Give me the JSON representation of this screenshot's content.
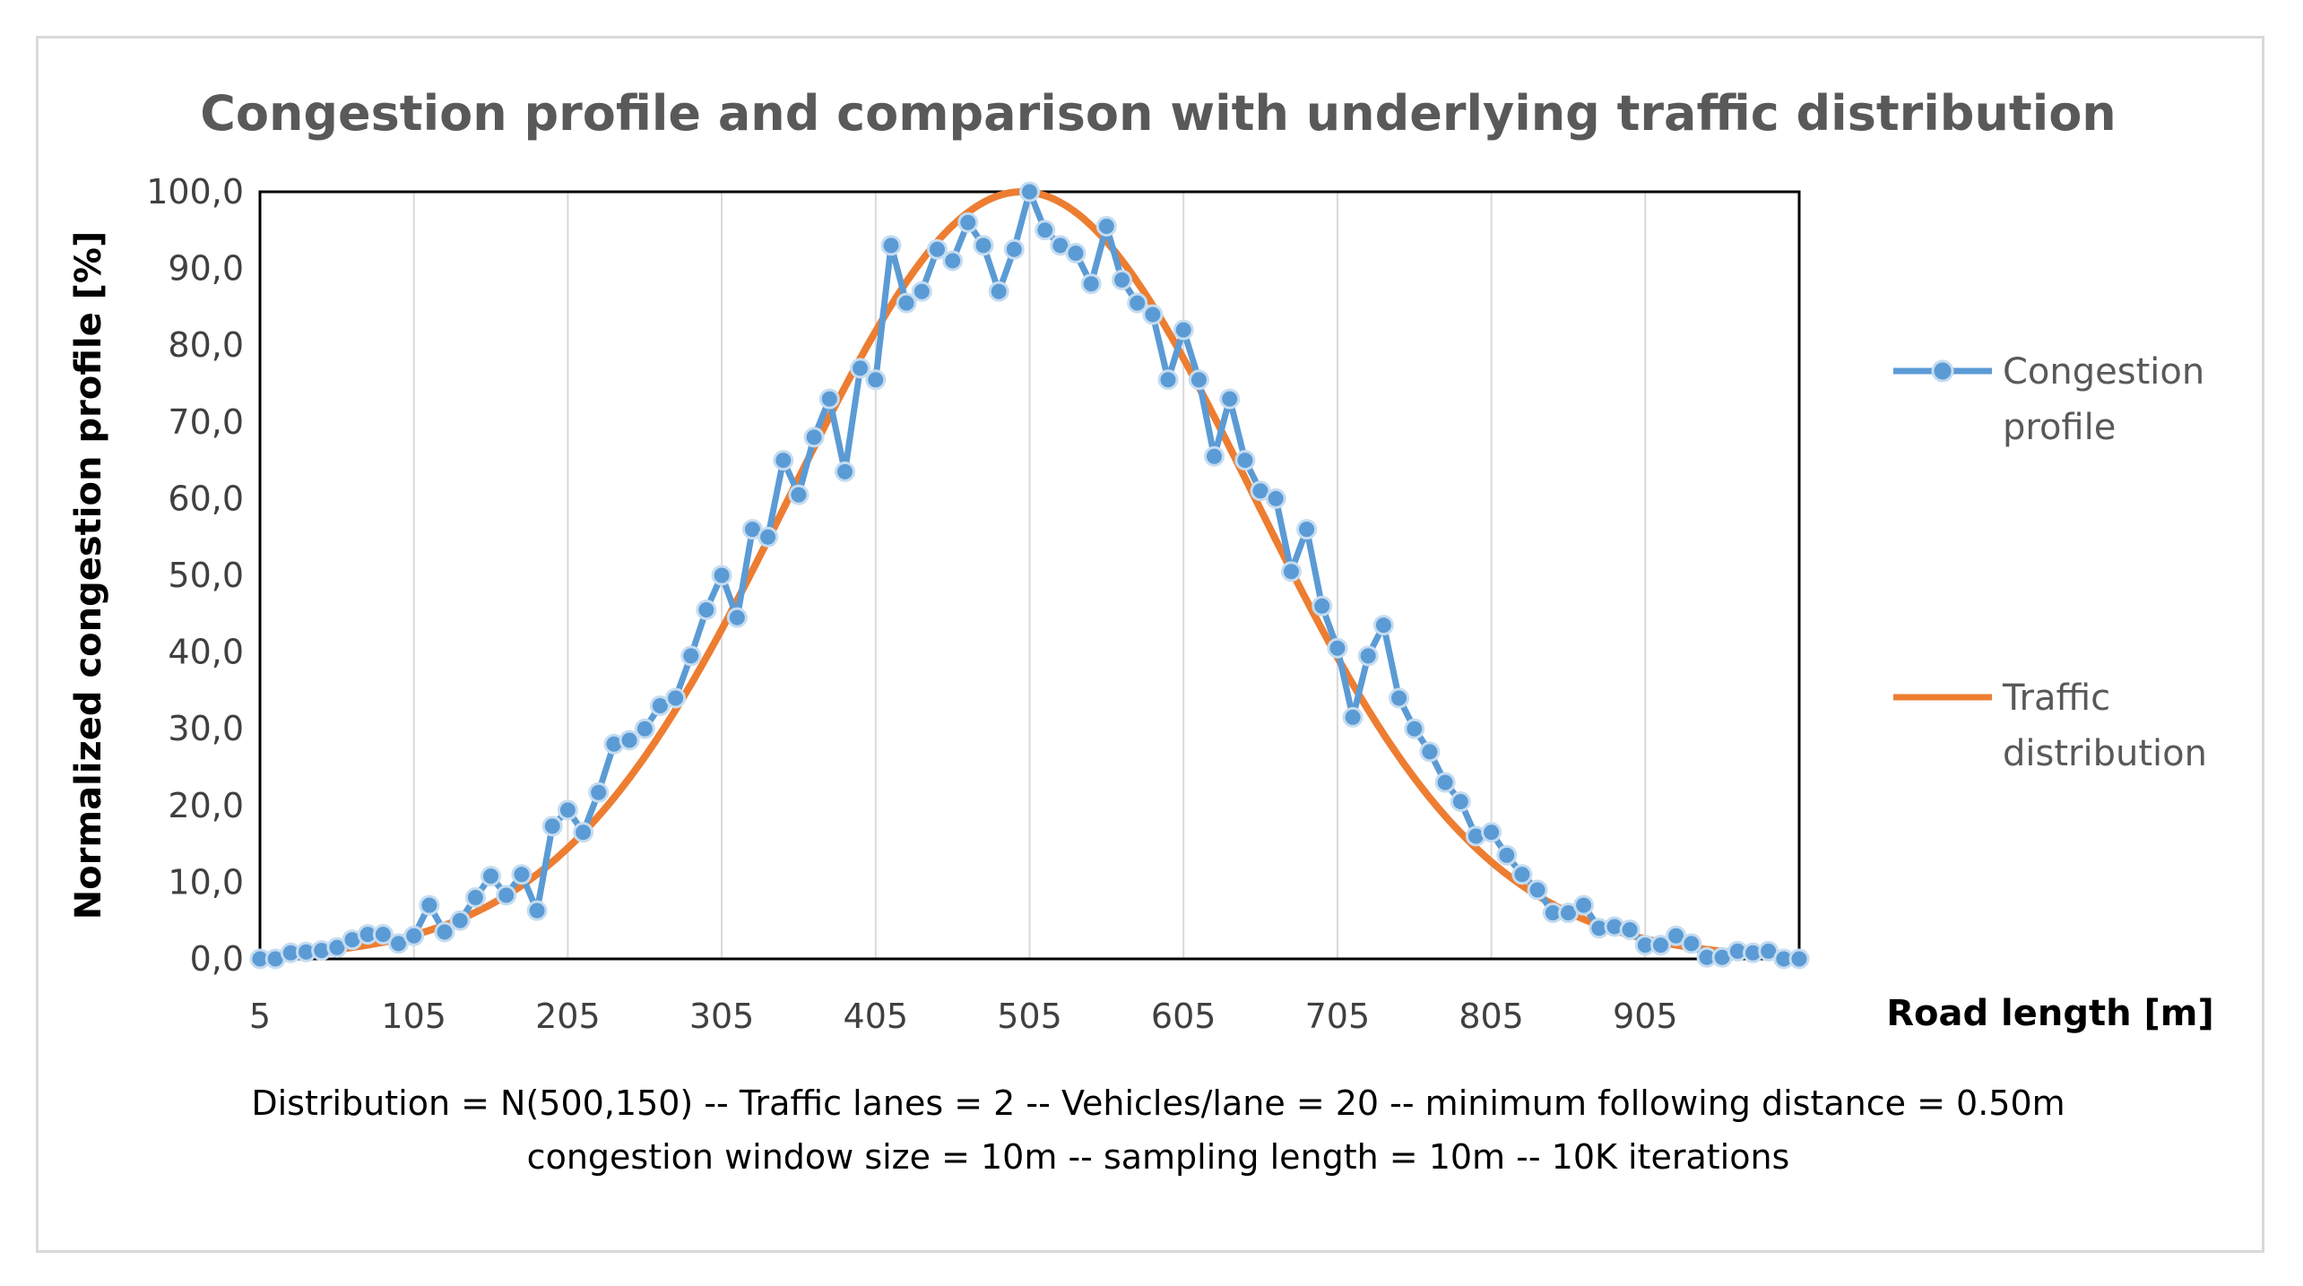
{
  "chart_data": {
    "type": "line",
    "title": "Congestion profile and comparison with underlying traffic distribution",
    "xlabel": "Road length [m]",
    "ylabel": "Normalized congestion profile [%]",
    "x_ticks": [
      "5",
      "105",
      "205",
      "305",
      "405",
      "505",
      "605",
      "705",
      "805",
      "905"
    ],
    "y_ticks": [
      "0,0",
      "10,0",
      "20,0",
      "30,0",
      "40,0",
      "50,0",
      "60,0",
      "70,0",
      "80,0",
      "90,0",
      "100,0"
    ],
    "xlim": [
      5,
      1005
    ],
    "ylim": [
      0,
      100
    ],
    "grid": "vertical",
    "legend": "right",
    "series": [
      {
        "name": "Congestion profile",
        "color": "#5b9bd5",
        "marker": "circle",
        "x": [
          5,
          15,
          25,
          35,
          45,
          55,
          65,
          75,
          85,
          95,
          105,
          115,
          125,
          135,
          145,
          155,
          165,
          175,
          185,
          195,
          205,
          215,
          225,
          235,
          245,
          255,
          265,
          275,
          285,
          295,
          305,
          315,
          325,
          335,
          345,
          355,
          365,
          375,
          385,
          395,
          405,
          415,
          425,
          435,
          445,
          455,
          465,
          475,
          485,
          495,
          505,
          515,
          525,
          535,
          545,
          555,
          565,
          575,
          585,
          595,
          605,
          615,
          625,
          635,
          645,
          655,
          665,
          675,
          685,
          695,
          705,
          715,
          725,
          735,
          745,
          755,
          765,
          775,
          785,
          795,
          805,
          815,
          825,
          835,
          845,
          855,
          865,
          875,
          885,
          895,
          905,
          915,
          925,
          935,
          945,
          955,
          965,
          975,
          985,
          995,
          1005
        ],
        "values": [
          0,
          0,
          0.8,
          0.9,
          1.1,
          1.5,
          2.5,
          3.2,
          3.2,
          2,
          3,
          7,
          3.5,
          5,
          8,
          10.8,
          8.3,
          11,
          6.3,
          17.3,
          19.4,
          16.5,
          21.7,
          28,
          28.5,
          30,
          33,
          34,
          39.5,
          45.5,
          50,
          44.5,
          56,
          55,
          65,
          60.5,
          68,
          73,
          63.5,
          77,
          75.5,
          93,
          85.5,
          87,
          92.5,
          91,
          96,
          93,
          87,
          92.5,
          100,
          95,
          93,
          92,
          88,
          95.5,
          88.5,
          85.5,
          84,
          75.5,
          82,
          75.5,
          65.5,
          73,
          65,
          61,
          60,
          50.5,
          56,
          46,
          40.5,
          31.5,
          39.5,
          43.5,
          34,
          30,
          27,
          23,
          20.5,
          16,
          16.5,
          13.5,
          11,
          9,
          6,
          6,
          7,
          4,
          4.2,
          3.8,
          1.8,
          1.8,
          3,
          2,
          0.2,
          0.2,
          1,
          0.8,
          1,
          0,
          0
        ]
      },
      {
        "name": "Traffic distribution",
        "color": "#ed7d31",
        "marker": "none",
        "mean": 500,
        "sd": 150
      }
    ]
  },
  "legend": {
    "congestion_line1": "Congestion",
    "congestion_line2": "profile",
    "traffic_line1": "Traffic",
    "traffic_line2": "distribution"
  },
  "notes": {
    "line1": "Distribution = N(500,150) -- Traffic lanes = 2 -- Vehicles/lane = 20 -- minimum following distance = 0.50m",
    "line2": "congestion window size = 10m -- sampling length = 10m -- 10K iterations"
  }
}
